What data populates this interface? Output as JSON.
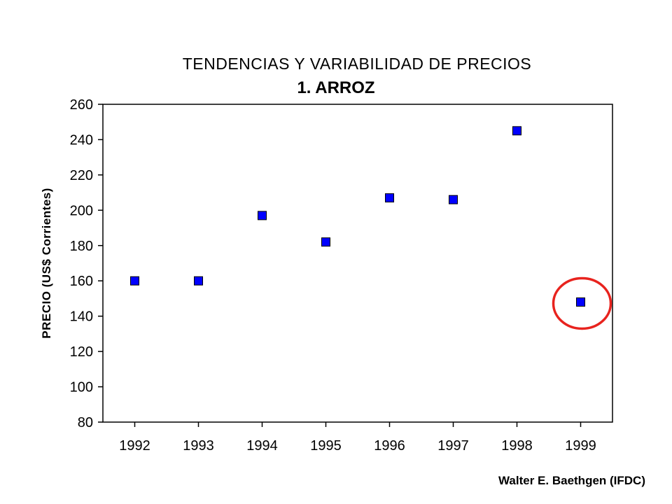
{
  "slide": {
    "title": "TENDENCIAS  Y  VARIABILIDAD  DE  PRECIOS",
    "subtitle": "1.  ARROZ",
    "credit": "Walter E.  Baethgen (IFDC)"
  },
  "chart_data": {
    "type": "scatter",
    "title": "",
    "xlabel": "",
    "ylabel": "PRECIO (US$ Corrientes)",
    "categories": [
      "1992",
      "1993",
      "1994",
      "1995",
      "1996",
      "1997",
      "1998",
      "1999"
    ],
    "series": [
      {
        "values": [
          160,
          160,
          197,
          182,
          207,
          206,
          245,
          148
        ]
      }
    ],
    "ylim": [
      80,
      260
    ],
    "yticks": [
      80,
      100,
      120,
      140,
      160,
      180,
      200,
      220,
      240,
      260
    ],
    "grid": false,
    "legend": "none",
    "marker_color": "#0000ff",
    "marker_shape": "square",
    "highlight": {
      "category": "1999",
      "shape": "circle",
      "color": "#e8231e"
    }
  }
}
